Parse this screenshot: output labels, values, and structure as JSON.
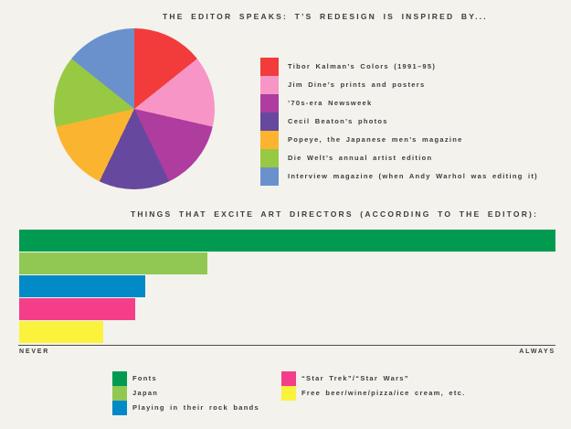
{
  "page": {
    "background_color": "#F3F2ED",
    "text_color": "#3C3C3C"
  },
  "pie_section": {
    "title": "THE EDITOR SPEAKS: T’S REDESIGN IS INSPIRED BY...",
    "legend": [
      {
        "label": "Tibor Kalman’s Colors (1991–95)",
        "color": "#F23B3B"
      },
      {
        "label": "Jim Dine’s prints and posters",
        "color": "#F795C6"
      },
      {
        "label": "’70s-era Newsweek",
        "color": "#AE3D9F"
      },
      {
        "label": "Cecil Beaton’s photos",
        "color": "#67489F"
      },
      {
        "label": "Popeye, the Japanese men’s magazine",
        "color": "#FBB430"
      },
      {
        "label": "Die Welt’s annual artist edition",
        "color": "#97C943"
      },
      {
        "label": "Interview magazine (when Andy Warhol was editing it)",
        "color": "#6B91CD"
      }
    ]
  },
  "bar_section": {
    "title": "THINGS THAT EXCITE ART DIRECTORS (ACCORDING TO THE EDITOR):",
    "axis": {
      "left": "NEVER",
      "right": "ALWAYS"
    },
    "legend_left": [
      {
        "label": "Fonts",
        "color": "#009B51"
      },
      {
        "label": "Japan",
        "color": "#90C853"
      },
      {
        "label": "Playing in their rock bands",
        "color": "#0289C7"
      }
    ],
    "legend_right": [
      {
        "label": "“Star Trek”/“Star Wars”",
        "color": "#F43E8A"
      },
      {
        "label": "Free beer/wine/pizza/ice cream, etc.",
        "color": "#FBF23C"
      }
    ]
  },
  "chart_data": [
    {
      "type": "pie",
      "title": "THE EDITOR SPEAKS: T’S REDESIGN IS INSPIRED BY...",
      "labels": [
        "Tibor Kalman’s Colors (1991–95)",
        "Jim Dine’s prints and posters",
        "’70s-era Newsweek",
        "Cecil Beaton’s photos",
        "Popeye, the Japanese men’s magazine",
        "Die Welt’s annual artist edition",
        "Interview magazine (when Andy Warhol was editing it)"
      ],
      "values": [
        14.3,
        14.3,
        14.3,
        14.3,
        14.3,
        14.3,
        14.3
      ],
      "colors": [
        "#F23B3B",
        "#F795C6",
        "#AE3D9F",
        "#67489F",
        "#FBB430",
        "#97C943",
        "#6B91CD"
      ],
      "start_angle_deg": 0,
      "direction": "clockwise",
      "legend_position": "right",
      "note": "seven equal slices"
    },
    {
      "type": "bar",
      "orientation": "horizontal",
      "title": "THINGS THAT EXCITE ART DIRECTORS (ACCORDING TO THE EDITOR):",
      "categories": [
        "Fonts",
        "Japan",
        "Playing in their rock bands",
        "“Star Trek”/“Star Wars”",
        "Free beer/wine/pizza/ice cream, etc."
      ],
      "values": [
        100,
        35.1,
        23.5,
        21.6,
        15.7
      ],
      "colors": [
        "#009B51",
        "#90C853",
        "#0289C7",
        "#F43E8A",
        "#FBF23C"
      ],
      "x_axis": {
        "left_label": "NEVER",
        "right_label": "ALWAYS",
        "range": [
          0,
          100
        ],
        "grid": false
      },
      "legend_position": "bottom"
    }
  ]
}
